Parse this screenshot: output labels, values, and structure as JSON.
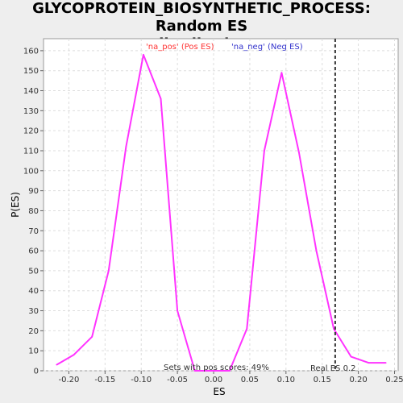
{
  "chart_data": {
    "type": "line",
    "title": "GLYCOPROTEIN_BIOSYNTHETIC_PROCESS: Random ES\ndistribution",
    "xlabel": "ES",
    "ylabel": "P(ES)",
    "xlim": [
      -0.235,
      0.255
    ],
    "ylim": [
      0,
      166
    ],
    "x_ticks": [
      -0.2,
      -0.15,
      -0.1,
      -0.05,
      0.0,
      0.05,
      0.1,
      0.15,
      0.2,
      0.25
    ],
    "x_tick_labels": [
      "-0.20",
      "-0.15",
      "-0.10",
      "-0.05",
      "0.00",
      "0.05",
      "0.10",
      "0.15",
      "0.20",
      "0.25"
    ],
    "y_ticks": [
      0,
      10,
      20,
      30,
      40,
      50,
      60,
      70,
      80,
      90,
      100,
      110,
      120,
      130,
      140,
      150,
      160
    ],
    "y_tick_labels": [
      "0",
      "10",
      "20",
      "30",
      "40",
      "50",
      "60",
      "70",
      "80",
      "90",
      "100",
      "110",
      "120",
      "130",
      "140",
      "150",
      "160"
    ],
    "grid": true,
    "series": [
      {
        "color": "#ff33ff",
        "points": [
          [
            -0.217,
            3
          ],
          [
            -0.193,
            8
          ],
          [
            -0.168,
            17
          ],
          [
            -0.145,
            50
          ],
          [
            -0.121,
            112
          ],
          [
            -0.097,
            158
          ],
          [
            -0.073,
            136
          ],
          [
            -0.05,
            30
          ],
          [
            -0.026,
            0
          ],
          [
            -0.002,
            0
          ],
          [
            0.022,
            0
          ],
          [
            0.046,
            21
          ],
          [
            0.07,
            110
          ],
          [
            0.094,
            149
          ],
          [
            0.118,
            109
          ],
          [
            0.142,
            60
          ],
          [
            0.166,
            21
          ],
          [
            0.19,
            7
          ],
          [
            0.214,
            4
          ],
          [
            0.238,
            4
          ]
        ]
      }
    ],
    "legend": [
      {
        "label": "'na_pos' (Pos ES)",
        "color": "#ff3333"
      },
      {
        "label": "'na_neg' (Neg ES)",
        "color": "#3333cc"
      }
    ],
    "real_es": {
      "x": 0.168,
      "label": "Real ES 0.2"
    },
    "annotation": "Sets with pos scores: 49%"
  }
}
